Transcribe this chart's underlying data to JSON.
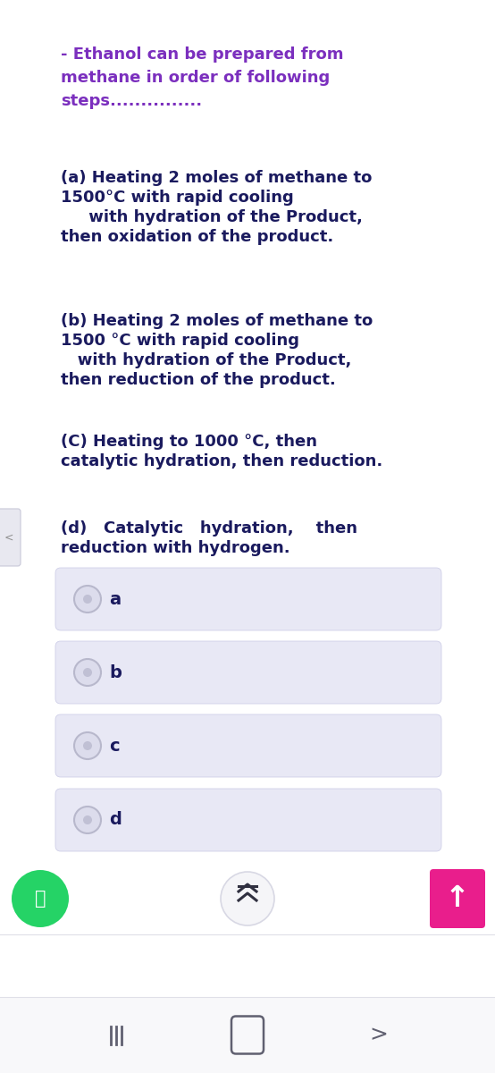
{
  "bg_color": "#ffffff",
  "content_bg": "#ffffff",
  "title_text_line1": "- Ethanol can be prepared from",
  "title_text_line2": "methane in order of following",
  "title_text_line3": "steps...............",
  "title_color": "#7b2fbe",
  "body_text_color": "#1a1a5e",
  "question_blocks": [
    {
      "lines": [
        "(a) Heating 2 moles of methane to",
        "1500°C with rapid cooling",
        "     with hydration of the Product,",
        "then oxidation of the product."
      ]
    },
    {
      "lines": [
        "(b) Heating 2 moles of methane to",
        "1500 °C with rapid cooling",
        "   with hydration of the Product,",
        "then reduction of the product."
      ]
    },
    {
      "lines": [
        "(C) Heating to 1000 °C, then",
        "catalytic hydration, then reduction."
      ]
    },
    {
      "lines": [
        "(d)   Catalytic   hydration,    then",
        "reduction with hydrogen."
      ]
    }
  ],
  "options": [
    "a",
    "b",
    "c",
    "d"
  ],
  "option_box_color": "#e8e8f5",
  "option_box_border": "#d0d0e8",
  "radio_outer_color": "#b8b8cc",
  "radio_inner_color": "#dcdcec",
  "radio_dot_color": "#c0c0d4",
  "whatsapp_green": "#25D366",
  "pink_button": "#e91e8c",
  "nav_color": "#606070",
  "left_arrow_bg": "#e8e8f0",
  "left_arrow_border": "#c8c8d8"
}
